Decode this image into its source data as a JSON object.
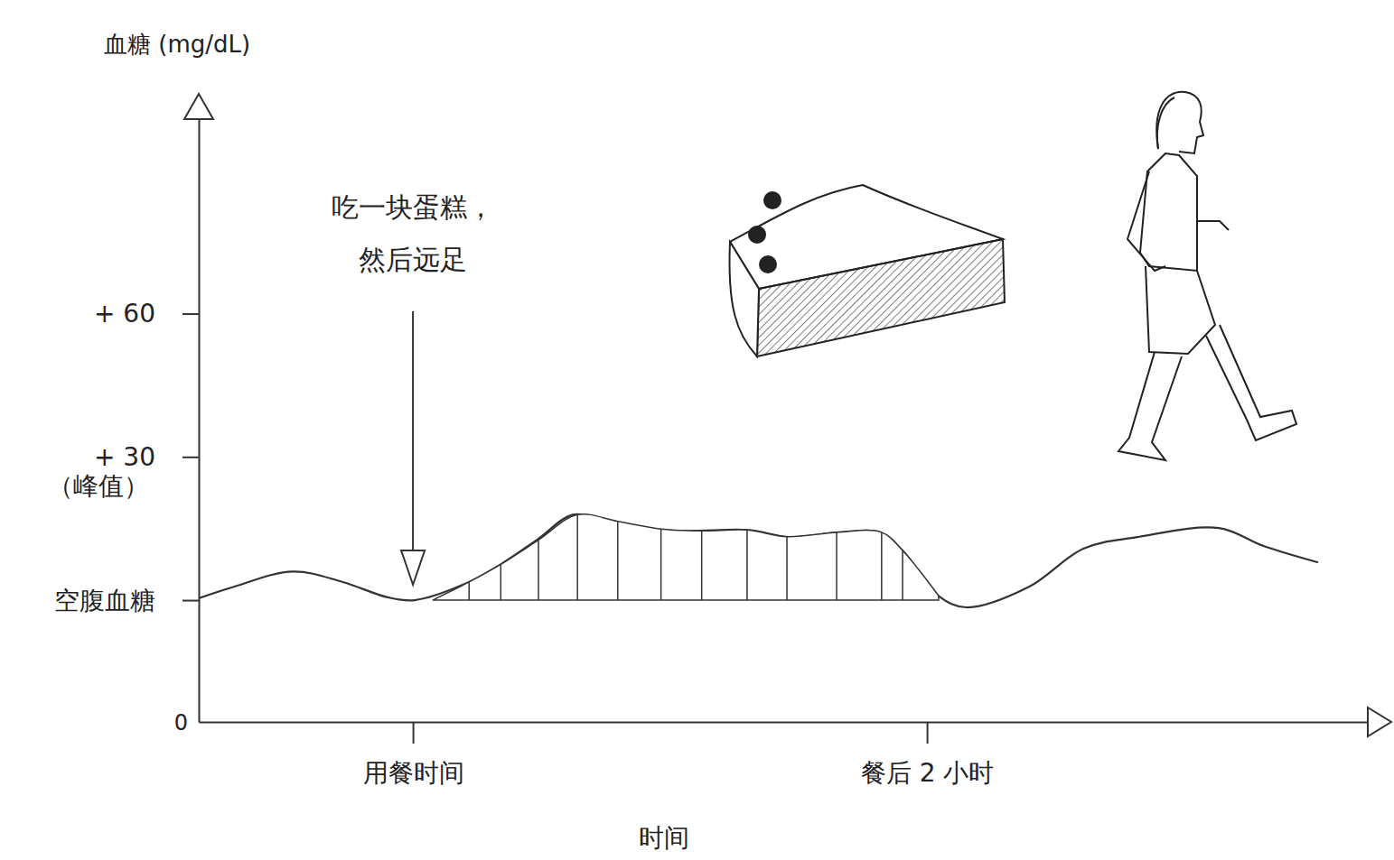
{
  "chart_data": {
    "type": "line",
    "y_title": "血糖 (mg/dL)",
    "x_title": "时间",
    "origin_label": "0",
    "peak_label": "（峰值）",
    "annotation": {
      "lines": [
        "吃一块蛋糕，",
        "然后远足"
      ],
      "x": 0
    },
    "xlim": [
      -50,
      225
    ],
    "xticks": [
      {
        "value": 0,
        "label": "用餐时间"
      },
      {
        "value": 120,
        "label": "餐后 2 小时"
      }
    ],
    "ylim": [
      -25.5,
      103
    ],
    "yticks": [
      {
        "value": 0,
        "label": "空腹血糖"
      },
      {
        "value": 30,
        "label": "+ 30"
      },
      {
        "value": 60,
        "label": "+ 60"
      }
    ],
    "grid": false,
    "series": [
      {
        "type": "line",
        "color": "#333333",
        "x": [
          -50,
          -41.8,
          -28,
          -16.4,
          -5.9,
          0.4,
          13.1,
          20.5,
          28.9,
          37.3,
          43.7,
          51,
          63.7,
          78.4,
          87.9,
          99.5,
          109,
          114.3,
          122.7,
          129.1,
          143.8,
          156.5,
          169.1,
          188.1,
          198.7,
          211.3
        ],
        "values": [
          0.4,
          2.8,
          6,
          3.8,
          0.6,
          0,
          3.8,
          7.5,
          12.6,
          17.9,
          17,
          15.1,
          14.5,
          14.7,
          13.2,
          14.2,
          14.2,
          10.4,
          0.9,
          -1.5,
          2.8,
          10.8,
          13.2,
          15.1,
          11.3,
          7.9
        ]
      },
      {
        "type": "area",
        "color": "#333333",
        "x": [
          4.6,
          13.1,
          20.5,
          29.3,
          38.4,
          47.8,
          57.9,
          67.4,
          78,
          87.3,
          98.9,
          109.4,
          114.3,
          122.7
        ],
        "values": [
          0,
          3.8,
          7.5,
          12.6,
          17.9,
          16.5,
          14.9,
          14.5,
          14.7,
          13.3,
          14.2,
          14.2,
          10.4,
          0.9
        ]
      }
    ]
  }
}
